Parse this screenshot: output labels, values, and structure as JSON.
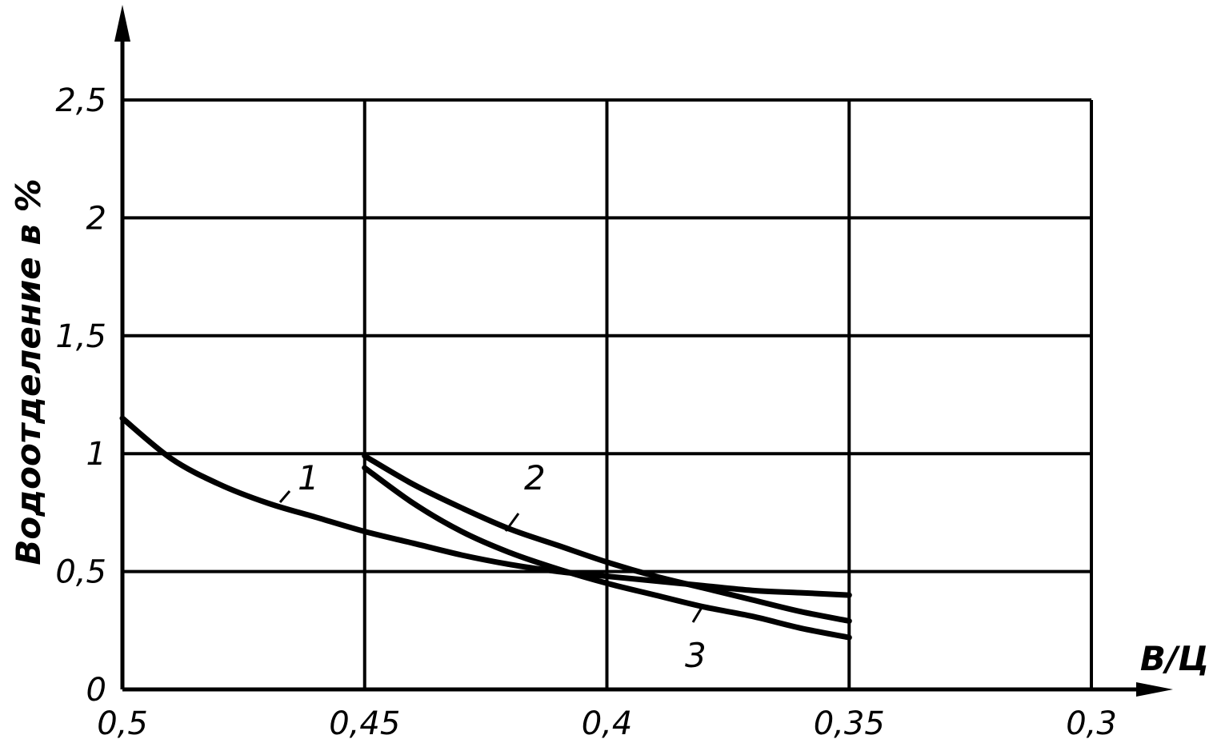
{
  "chart_data": {
    "type": "line",
    "xlabel": "В/Ц",
    "ylabel": "Водоотделение в %",
    "xlim": [
      0.5,
      0.3
    ],
    "ylim": [
      0,
      2.5
    ],
    "x_ticks": [
      "0,5",
      "0,45",
      "0,4",
      "0,35",
      "0,3"
    ],
    "y_ticks": [
      "0",
      "0,5",
      "1",
      "1,5",
      "2",
      "2,5"
    ],
    "grid": true,
    "axes_color": "#000000",
    "series": [
      {
        "name": "1",
        "color": "#000000",
        "x": [
          0.5,
          0.49,
          0.48,
          0.47,
          0.46,
          0.45,
          0.44,
          0.43,
          0.42,
          0.41,
          0.4,
          0.39,
          0.38,
          0.37,
          0.36,
          0.35
        ],
        "y": [
          1.15,
          0.98,
          0.87,
          0.79,
          0.73,
          0.67,
          0.62,
          0.57,
          0.53,
          0.5,
          0.48,
          0.46,
          0.44,
          0.42,
          0.41,
          0.4
        ]
      },
      {
        "name": "2",
        "color": "#000000",
        "x": [
          0.45,
          0.44,
          0.43,
          0.42,
          0.41,
          0.4,
          0.39,
          0.38,
          0.37,
          0.36,
          0.35
        ],
        "y": [
          0.99,
          0.87,
          0.77,
          0.68,
          0.61,
          0.54,
          0.48,
          0.43,
          0.38,
          0.33,
          0.29
        ]
      },
      {
        "name": "3",
        "color": "#000000",
        "x": [
          0.45,
          0.44,
          0.43,
          0.42,
          0.41,
          0.4,
          0.39,
          0.38,
          0.37,
          0.36,
          0.35
        ],
        "y": [
          0.94,
          0.79,
          0.67,
          0.58,
          0.51,
          0.45,
          0.4,
          0.35,
          0.31,
          0.26,
          0.22
        ]
      }
    ]
  }
}
